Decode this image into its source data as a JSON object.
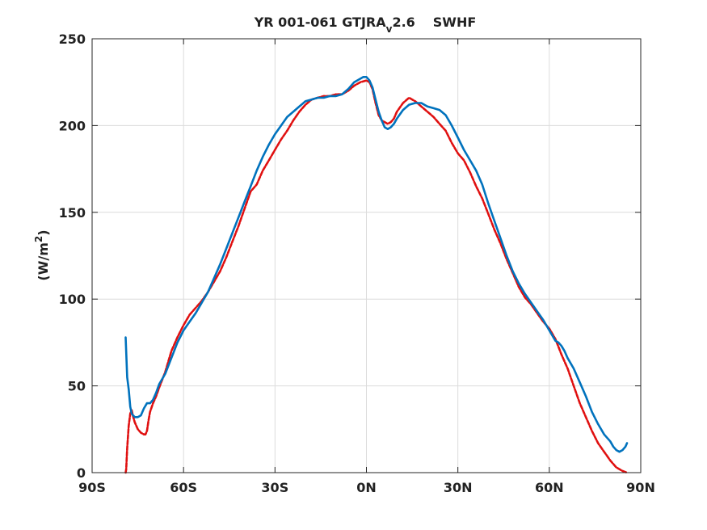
{
  "chart_data": {
    "type": "line",
    "title_main": "YR 001-061 GTJRA",
    "title_sub": "v",
    "title_version": "2.6",
    "title_var": "SWHF",
    "xlabel": "",
    "ylabel_prefix": "(W/m",
    "ylabel_sup": "2",
    "ylabel_suffix": ")",
    "xlim": [
      -90,
      90
    ],
    "ylim": [
      0,
      250
    ],
    "grid": true,
    "x_ticks": [
      {
        "value": -90,
        "label": "90S"
      },
      {
        "value": -60,
        "label": "60S"
      },
      {
        "value": -30,
        "label": "30S"
      },
      {
        "value": 0,
        "label": "0N"
      },
      {
        "value": 30,
        "label": "30N"
      },
      {
        "value": 60,
        "label": "60N"
      },
      {
        "value": 90,
        "label": "90N"
      }
    ],
    "y_ticks": [
      {
        "value": 0,
        "label": "0"
      },
      {
        "value": 50,
        "label": "50"
      },
      {
        "value": 100,
        "label": "100"
      },
      {
        "value": 150,
        "label": "150"
      },
      {
        "value": 200,
        "label": "200"
      },
      {
        "value": 250,
        "label": "250"
      }
    ],
    "series": [
      {
        "color": "#0072bd",
        "style": "solid",
        "points": [
          [
            -79,
            78
          ],
          [
            -78.5,
            55
          ],
          [
            -78,
            48
          ],
          [
            -77.5,
            38
          ],
          [
            -77,
            34
          ],
          [
            -76,
            32
          ],
          [
            -75,
            32
          ],
          [
            -74,
            33
          ],
          [
            -73,
            37
          ],
          [
            -72,
            40
          ],
          [
            -71,
            40
          ],
          [
            -70,
            42
          ],
          [
            -69,
            46
          ],
          [
            -68,
            51
          ],
          [
            -66,
            57
          ],
          [
            -64,
            66
          ],
          [
            -62,
            75
          ],
          [
            -60,
            82
          ],
          [
            -58,
            87
          ],
          [
            -56,
            92
          ],
          [
            -54,
            98
          ],
          [
            -52,
            104
          ],
          [
            -50,
            112
          ],
          [
            -48,
            120
          ],
          [
            -46,
            129
          ],
          [
            -44,
            138
          ],
          [
            -42,
            147
          ],
          [
            -40,
            156
          ],
          [
            -38,
            165
          ],
          [
            -36,
            174
          ],
          [
            -34,
            182
          ],
          [
            -32,
            189
          ],
          [
            -30,
            195
          ],
          [
            -28,
            200
          ],
          [
            -26,
            205
          ],
          [
            -24,
            208
          ],
          [
            -22,
            211
          ],
          [
            -20,
            214
          ],
          [
            -18,
            215
          ],
          [
            -16,
            216
          ],
          [
            -14,
            216
          ],
          [
            -12,
            217
          ],
          [
            -10,
            217
          ],
          [
            -8,
            218
          ],
          [
            -6,
            221
          ],
          [
            -4,
            225
          ],
          [
            -2,
            227
          ],
          [
            -1,
            228
          ],
          [
            0,
            228
          ],
          [
            1,
            226
          ],
          [
            2,
            222
          ],
          [
            3,
            215
          ],
          [
            4,
            208
          ],
          [
            5,
            203
          ],
          [
            6,
            199
          ],
          [
            7,
            198
          ],
          [
            8,
            199
          ],
          [
            9,
            201
          ],
          [
            10,
            204
          ],
          [
            12,
            209
          ],
          [
            14,
            212
          ],
          [
            16,
            213
          ],
          [
            18,
            213
          ],
          [
            20,
            211
          ],
          [
            22,
            210
          ],
          [
            24,
            209
          ],
          [
            26,
            206
          ],
          [
            28,
            200
          ],
          [
            30,
            193
          ],
          [
            32,
            186
          ],
          [
            34,
            180
          ],
          [
            36,
            174
          ],
          [
            38,
            166
          ],
          [
            40,
            155
          ],
          [
            42,
            145
          ],
          [
            44,
            135
          ],
          [
            46,
            125
          ],
          [
            48,
            116
          ],
          [
            50,
            109
          ],
          [
            52,
            103
          ],
          [
            54,
            98
          ],
          [
            56,
            93
          ],
          [
            58,
            88
          ],
          [
            60,
            82
          ],
          [
            61,
            79
          ],
          [
            62,
            76
          ],
          [
            63,
            75
          ],
          [
            64,
            73
          ],
          [
            65,
            70
          ],
          [
            66,
            66
          ],
          [
            68,
            60
          ],
          [
            70,
            52
          ],
          [
            72,
            44
          ],
          [
            74,
            35
          ],
          [
            76,
            28
          ],
          [
            78,
            22
          ],
          [
            80,
            18
          ],
          [
            81,
            15
          ],
          [
            82,
            13
          ],
          [
            83,
            12
          ],
          [
            84,
            13
          ],
          [
            85,
            15
          ],
          [
            85.5,
            17
          ]
        ]
      },
      {
        "color": "#e01010",
        "style": "dashed",
        "points": [
          [
            -79,
            0
          ],
          [
            -78.8,
            2
          ],
          [
            -78.5,
            14
          ],
          [
            -78,
            27
          ],
          [
            -77.5,
            34
          ],
          [
            -77,
            36
          ],
          [
            -76.5,
            32
          ],
          [
            -76,
            29
          ],
          [
            -75,
            25
          ],
          [
            -74,
            23
          ],
          [
            -73,
            22
          ],
          [
            -72.5,
            22
          ],
          [
            -72,
            24
          ],
          [
            -71.5,
            30
          ],
          [
            -71,
            35
          ],
          [
            -70,
            40
          ],
          [
            -69,
            44
          ],
          [
            -68,
            49
          ],
          [
            -66,
            58
          ],
          [
            -64,
            70
          ],
          [
            -62,
            78
          ],
          [
            -60,
            85
          ],
          [
            -58,
            91
          ],
          [
            -56,
            95
          ],
          [
            -54,
            99
          ],
          [
            -52,
            104
          ],
          [
            -50,
            110
          ],
          [
            -48,
            116
          ],
          [
            -46,
            124
          ],
          [
            -44,
            133
          ],
          [
            -42,
            142
          ],
          [
            -40,
            152
          ],
          [
            -38,
            162
          ],
          [
            -36,
            166
          ],
          [
            -34,
            174
          ],
          [
            -32,
            180
          ],
          [
            -30,
            186
          ],
          [
            -28,
            192
          ],
          [
            -26,
            197
          ],
          [
            -24,
            203
          ],
          [
            -22,
            208
          ],
          [
            -20,
            212
          ],
          [
            -18,
            215
          ],
          [
            -16,
            216
          ],
          [
            -14,
            217
          ],
          [
            -12,
            217
          ],
          [
            -10,
            218
          ],
          [
            -8,
            218
          ],
          [
            -6,
            220
          ],
          [
            -4,
            223
          ],
          [
            -2,
            225
          ],
          [
            0,
            226
          ],
          [
            1,
            225
          ],
          [
            2,
            221
          ],
          [
            3,
            213
          ],
          [
            4,
            206
          ],
          [
            5,
            203
          ],
          [
            6,
            202
          ],
          [
            7,
            201
          ],
          [
            8,
            202
          ],
          [
            9,
            204
          ],
          [
            10,
            208
          ],
          [
            12,
            213
          ],
          [
            14,
            216
          ],
          [
            16,
            214
          ],
          [
            18,
            211
          ],
          [
            20,
            208
          ],
          [
            22,
            205
          ],
          [
            24,
            201
          ],
          [
            26,
            197
          ],
          [
            28,
            190
          ],
          [
            30,
            184
          ],
          [
            32,
            180
          ],
          [
            34,
            173
          ],
          [
            36,
            165
          ],
          [
            38,
            158
          ],
          [
            40,
            149
          ],
          [
            42,
            140
          ],
          [
            44,
            132
          ],
          [
            46,
            123
          ],
          [
            48,
            115
          ],
          [
            50,
            107
          ],
          [
            52,
            101
          ],
          [
            54,
            97
          ],
          [
            56,
            92
          ],
          [
            58,
            87
          ],
          [
            60,
            83
          ],
          [
            62,
            77
          ],
          [
            64,
            68
          ],
          [
            66,
            60
          ],
          [
            68,
            50
          ],
          [
            70,
            40
          ],
          [
            72,
            32
          ],
          [
            74,
            24
          ],
          [
            76,
            17
          ],
          [
            78,
            12
          ],
          [
            80,
            7
          ],
          [
            82,
            3
          ],
          [
            84,
            1
          ],
          [
            85.5,
            0
          ]
        ]
      }
    ]
  }
}
